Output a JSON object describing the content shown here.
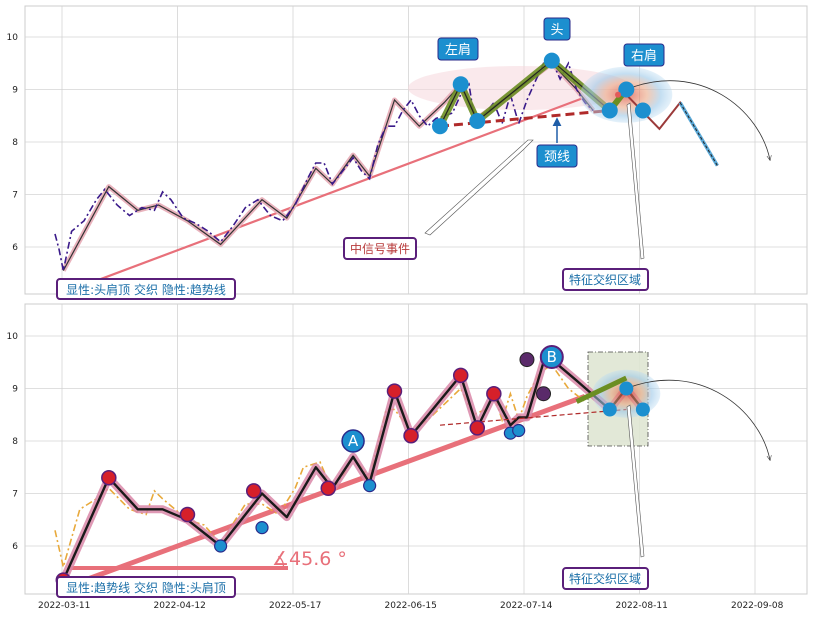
{
  "chart_data": [
    {
      "type": "line",
      "panel": "top",
      "ylim": [
        5.1,
        10.6
      ],
      "yticks": [
        6,
        7,
        8,
        9,
        10
      ],
      "grid": true,
      "price_dashdot": [
        [
          0,
          6.25
        ],
        [
          1,
          5.95
        ],
        [
          2,
          5.55
        ],
        [
          4,
          6.3
        ],
        [
          7,
          6.5
        ],
        [
          10,
          6.9
        ],
        [
          12,
          7.1
        ],
        [
          15,
          6.8
        ],
        [
          18,
          6.6
        ],
        [
          21,
          6.75
        ],
        [
          24,
          6.7
        ],
        [
          26,
          7.05
        ],
        [
          28,
          6.9
        ],
        [
          31,
          6.55
        ],
        [
          34,
          6.45
        ],
        [
          37,
          6.3
        ],
        [
          40,
          6.1
        ],
        [
          43,
          6.4
        ],
        [
          46,
          6.75
        ],
        [
          49,
          6.9
        ],
        [
          52,
          6.6
        ],
        [
          55,
          6.5
        ],
        [
          58,
          6.8
        ],
        [
          61,
          7.3
        ],
        [
          63,
          7.6
        ],
        [
          65,
          7.6
        ],
        [
          67,
          7.2
        ],
        [
          70,
          7.5
        ],
        [
          72,
          7.7
        ],
        [
          74,
          7.45
        ],
        [
          76,
          7.3
        ],
        [
          78,
          7.95
        ],
        [
          80,
          8.3
        ],
        [
          82,
          8.3
        ],
        [
          84,
          8.6
        ],
        [
          86,
          8.8
        ],
        [
          88,
          8.5
        ],
        [
          90,
          8.3
        ],
        [
          92,
          8.45
        ],
        [
          94,
          8.5
        ],
        [
          96,
          8.55
        ],
        [
          98,
          8.9
        ],
        [
          100,
          9.1
        ],
        [
          101,
          8.6
        ],
        [
          102,
          8.3
        ],
        [
          104,
          8.55
        ],
        [
          106,
          8.75
        ],
        [
          108,
          8.35
        ],
        [
          110,
          8.9
        ],
        [
          112,
          8.35
        ],
        [
          114,
          8.8
        ],
        [
          116,
          9.15
        ],
        [
          118,
          9.5
        ],
        [
          120,
          9.55
        ],
        [
          122,
          9.2
        ],
        [
          124,
          9.5
        ],
        [
          126,
          9.0
        ],
        [
          128,
          8.75
        ],
        [
          130,
          8.6
        ]
      ],
      "trend_path": [
        [
          2,
          5.55
        ],
        [
          13,
          7.15
        ],
        [
          20,
          6.7
        ],
        [
          25,
          6.8
        ],
        [
          32,
          6.5
        ],
        [
          40,
          6.05
        ],
        [
          50,
          6.9
        ],
        [
          56,
          6.55
        ],
        [
          63,
          7.5
        ],
        [
          67,
          7.2
        ],
        [
          72,
          7.75
        ],
        [
          76,
          7.35
        ],
        [
          82,
          8.8
        ],
        [
          88,
          8.3
        ],
        [
          94,
          8.75
        ],
        [
          98,
          9.1
        ],
        [
          102,
          8.45
        ],
        [
          110,
          8.9
        ],
        [
          120,
          9.5
        ],
        [
          126,
          9.0
        ],
        [
          130,
          8.6
        ]
      ],
      "pattern_left_shoulder": [
        [
          93,
          8.3
        ],
        [
          98,
          9.1
        ],
        [
          102,
          8.4
        ]
      ],
      "pattern_head": [
        [
          102,
          8.4
        ],
        [
          120,
          9.55
        ],
        [
          134,
          8.6
        ]
      ],
      "pattern_right_shoulder": [
        [
          134,
          8.6
        ],
        [
          138,
          9.0
        ]
      ],
      "head_points": [
        [
          93,
          8.3
        ],
        [
          98,
          9.1
        ],
        [
          102,
          8.4
        ],
        [
          120,
          9.55
        ],
        [
          134,
          8.6
        ],
        [
          138,
          9.0
        ],
        [
          142,
          8.6
        ]
      ],
      "neckline": [
        [
          93,
          8.3
        ],
        [
          134,
          8.6
        ]
      ],
      "trendline": [
        [
          8,
          5.3
        ],
        [
          128,
          8.85
        ]
      ],
      "projection": [
        [
          138,
          8.9
        ],
        [
          146,
          8.25
        ],
        [
          151,
          8.75
        ],
        [
          160,
          7.55
        ]
      ],
      "labels": {
        "left_shoulder": "左肩",
        "head": "头",
        "right_shoulder": "右肩",
        "neckline": "颈线",
        "mid_signal": "中信号事件",
        "feature_zone": "特征交织区域",
        "status": "显性:头肩顶 交织 隐性:趋势线"
      }
    },
    {
      "type": "line",
      "panel": "bottom",
      "ylim": [
        5.1,
        10.6
      ],
      "yticks": [
        6,
        7,
        8,
        9,
        10
      ],
      "xticks": [
        "2022-03-11",
        "2022-04-12",
        "2022-05-17",
        "2022-06-15",
        "2022-07-14",
        "2022-08-11",
        "2022-09-08"
      ],
      "grid": true,
      "price_dashdot": [
        [
          0,
          6.3
        ],
        [
          2,
          5.6
        ],
        [
          6,
          6.7
        ],
        [
          10,
          6.9
        ],
        [
          13,
          7.1
        ],
        [
          18,
          6.7
        ],
        [
          22,
          6.6
        ],
        [
          24,
          7.05
        ],
        [
          26,
          6.9
        ],
        [
          32,
          6.5
        ],
        [
          36,
          6.4
        ],
        [
          40,
          6.05
        ],
        [
          46,
          6.8
        ],
        [
          50,
          6.8
        ],
        [
          54,
          6.6
        ],
        [
          58,
          7.1
        ],
        [
          60,
          7.5
        ],
        [
          64,
          7.6
        ],
        [
          67,
          7.05
        ],
        [
          70,
          7.4
        ],
        [
          72,
          7.7
        ],
        [
          76,
          7.3
        ],
        [
          80,
          8.6
        ],
        [
          82,
          8.6
        ],
        [
          86,
          8.2
        ],
        [
          90,
          8.4
        ],
        [
          94,
          8.7
        ],
        [
          98,
          9.0
        ],
        [
          101,
          8.5
        ],
        [
          104,
          8.6
        ],
        [
          106,
          8.9
        ],
        [
          108,
          8.4
        ],
        [
          110,
          8.9
        ],
        [
          112,
          8.4
        ],
        [
          114,
          8.85
        ],
        [
          117,
          9.3
        ],
        [
          120,
          9.45
        ],
        [
          124,
          9.0
        ],
        [
          128,
          8.75
        ]
      ],
      "trend_path": [
        [
          2,
          5.35
        ],
        [
          13,
          7.3
        ],
        [
          20,
          6.7
        ],
        [
          26,
          6.7
        ],
        [
          32,
          6.5
        ],
        [
          40,
          6.0
        ],
        [
          50,
          7.0
        ],
        [
          56,
          6.55
        ],
        [
          63,
          7.5
        ],
        [
          67,
          7.1
        ],
        [
          72,
          7.7
        ],
        [
          76,
          7.2
        ],
        [
          82,
          8.95
        ],
        [
          86,
          8.1
        ],
        [
          98,
          9.25
        ],
        [
          102,
          8.25
        ],
        [
          106,
          8.9
        ],
        [
          110,
          8.3
        ],
        [
          112,
          8.45
        ],
        [
          114,
          8.45
        ],
        [
          118,
          9.5
        ],
        [
          120,
          9.55
        ],
        [
          126,
          9.15
        ],
        [
          134,
          8.6
        ],
        [
          138,
          9.0
        ],
        [
          142,
          8.6
        ]
      ],
      "neckline": [
        [
          93,
          8.3
        ],
        [
          138,
          8.6
        ]
      ],
      "trendline": [
        [
          2,
          5.2
        ],
        [
          128,
          8.85
        ]
      ],
      "trend_stub": [
        [
          126,
          8.75
        ],
        [
          138,
          9.2
        ]
      ],
      "angle_label": "∡45.6 °",
      "markers_red": [
        [
          2,
          5.35
        ],
        [
          13,
          7.3
        ],
        [
          32,
          6.6
        ],
        [
          48,
          7.05
        ],
        [
          66,
          7.1
        ],
        [
          82,
          8.95
        ],
        [
          86,
          8.1
        ],
        [
          98,
          9.25
        ],
        [
          102,
          8.25
        ],
        [
          106,
          8.9
        ]
      ],
      "markers_blue": [
        [
          40,
          6.0
        ],
        [
          50,
          6.35
        ],
        [
          76,
          7.15
        ],
        [
          110,
          8.15
        ],
        [
          112,
          8.2
        ]
      ],
      "marker_A": [
        72,
        8.0
      ],
      "marker_B": [
        120,
        9.6
      ],
      "markers_purple": [
        [
          114,
          9.55
        ],
        [
          118,
          8.9
        ]
      ],
      "labels": {
        "A": "A",
        "B": "B",
        "feature_zone": "特征交织区域",
        "status": "显性:趋势线 交织 隐性:头肩顶"
      }
    }
  ]
}
